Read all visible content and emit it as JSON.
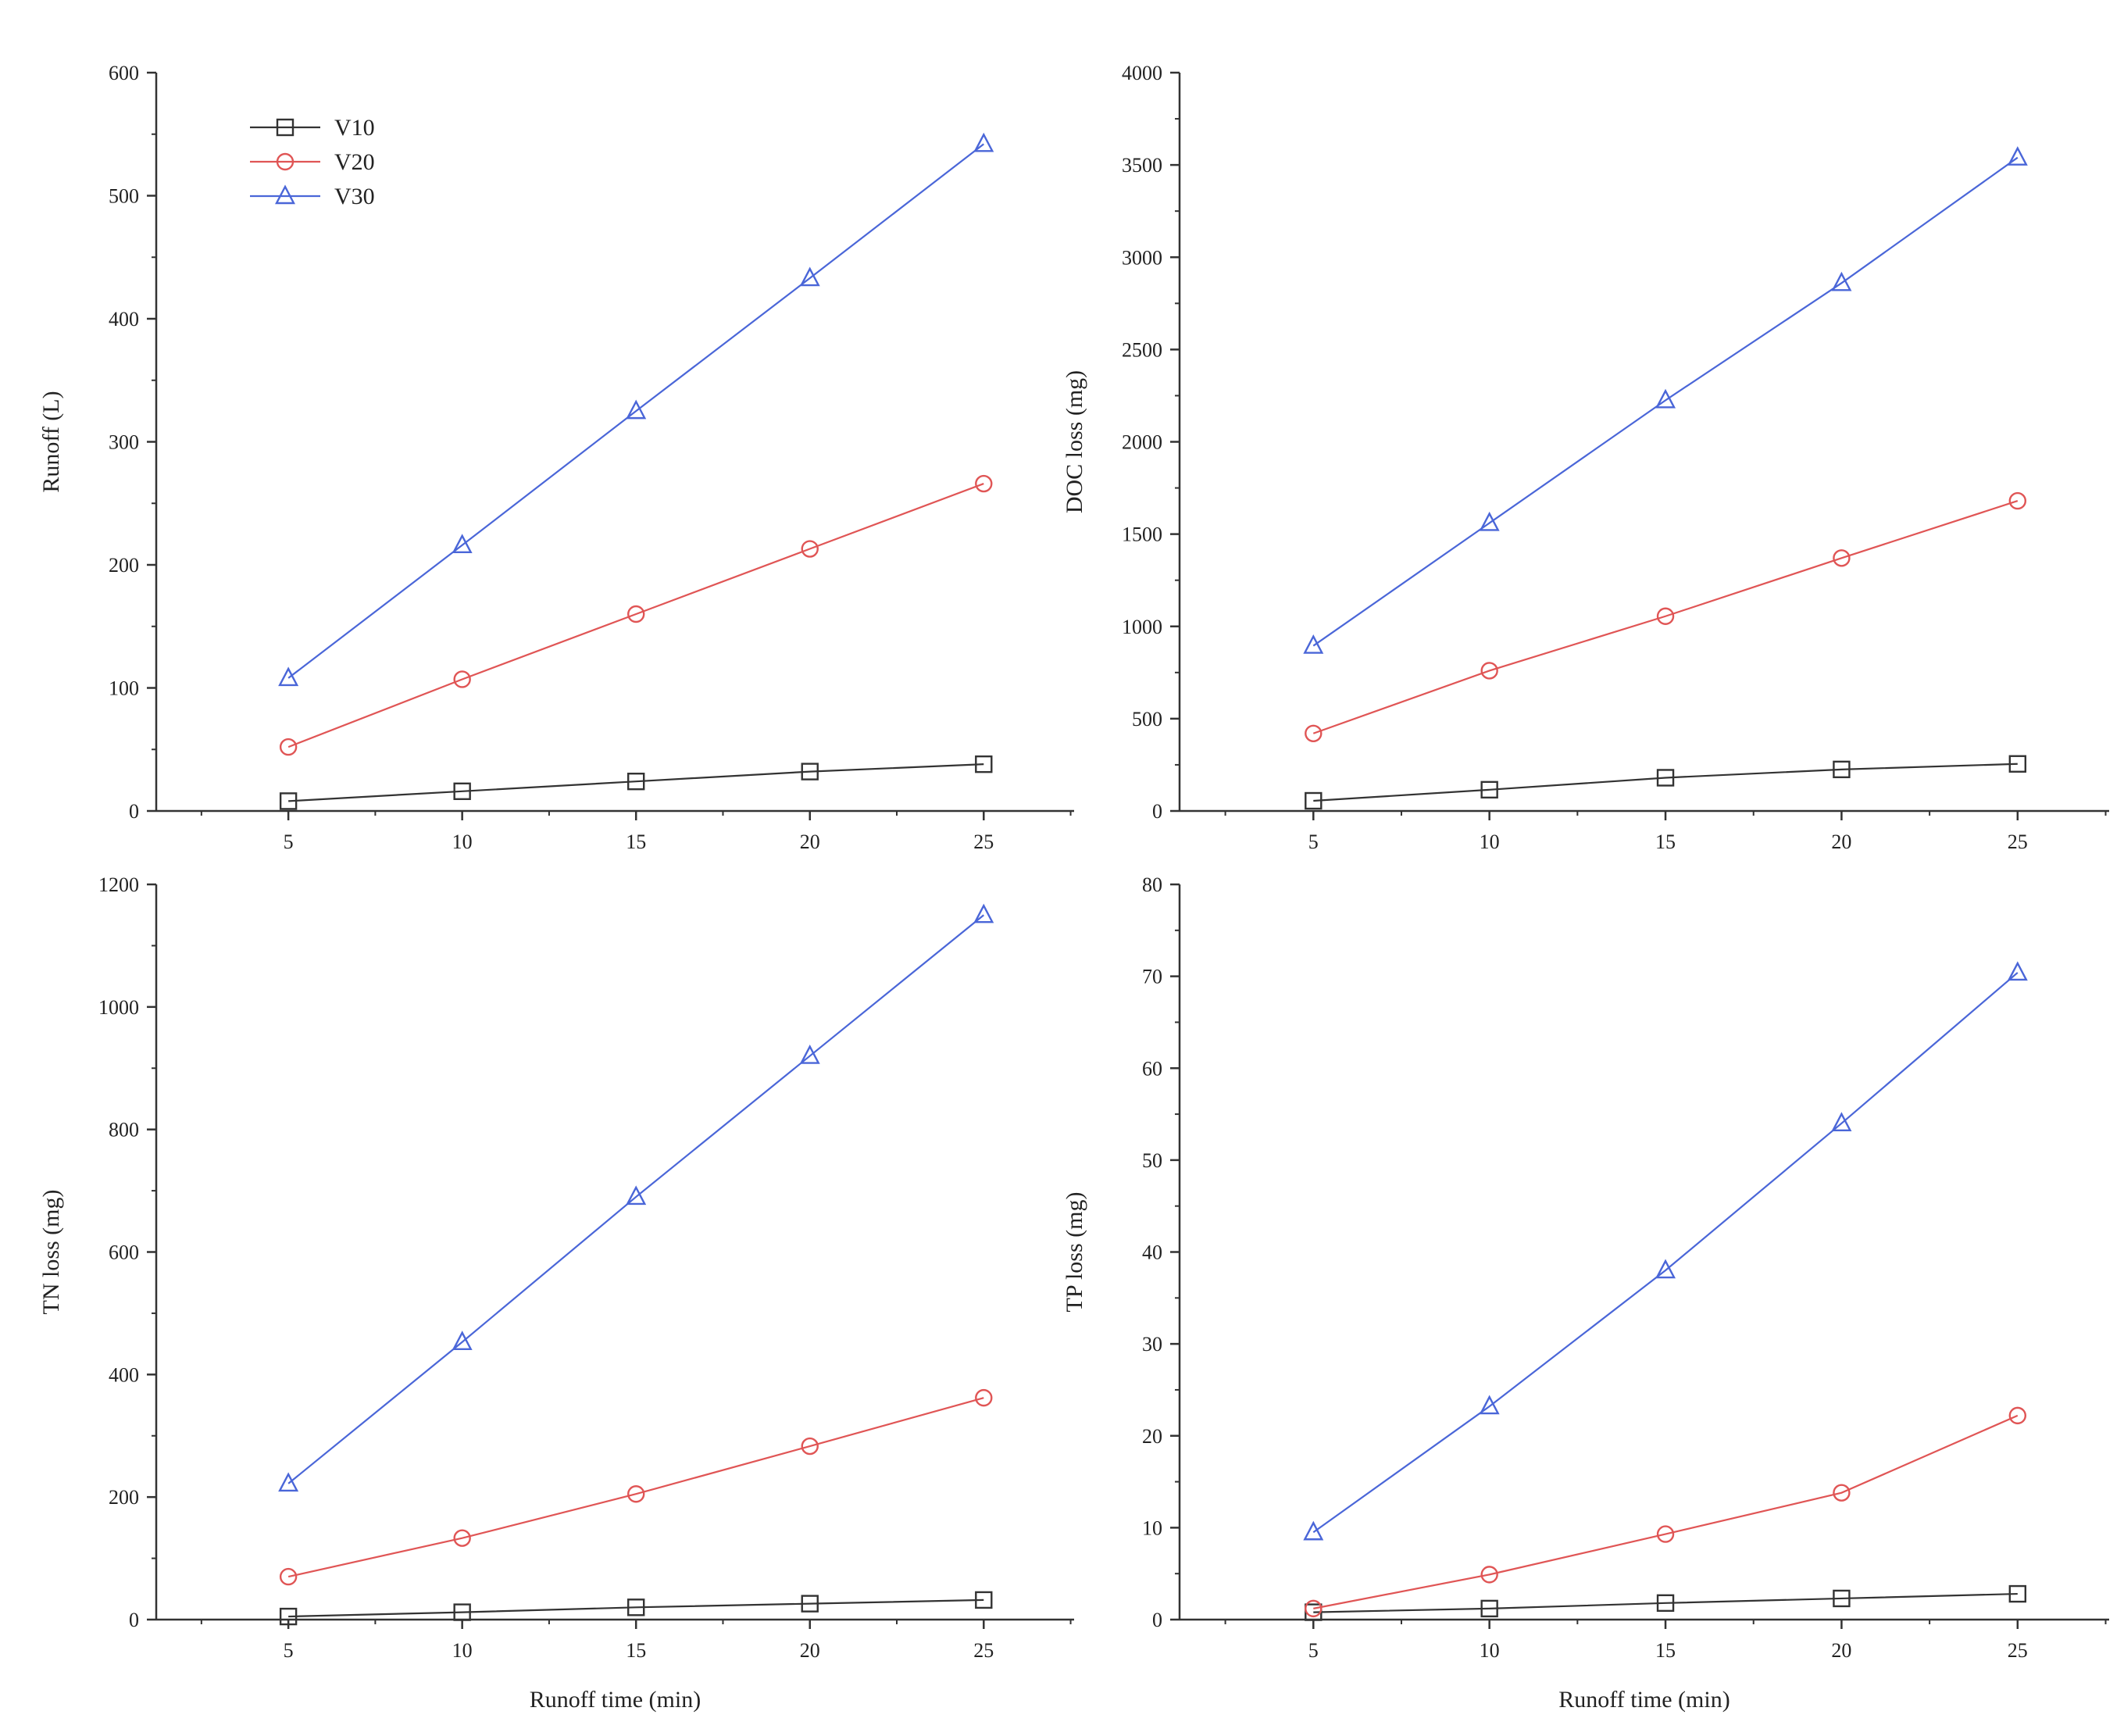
{
  "chart_data": [
    {
      "type": "line",
      "panel": "top-left",
      "title": "",
      "xlabel": "",
      "ylabel": "Runoff (L)",
      "x": [
        5,
        10,
        15,
        20,
        25
      ],
      "xticks": [
        "5",
        "10",
        "15",
        "20",
        "25"
      ],
      "ylim": [
        0,
        600
      ],
      "yticks": [
        "0",
        "100",
        "200",
        "300",
        "400",
        "500",
        "600"
      ],
      "legend": {
        "placement": "top-left",
        "entries": [
          "V10",
          "V20",
          "V30"
        ]
      },
      "series": [
        {
          "name": "V10",
          "marker": "square",
          "values": [
            8,
            16,
            24,
            32,
            38
          ]
        },
        {
          "name": "V20",
          "marker": "circle",
          "values": [
            52,
            107,
            160,
            213,
            266
          ]
        },
        {
          "name": "V30",
          "marker": "triangle",
          "values": [
            108,
            216,
            325,
            433,
            542
          ]
        }
      ]
    },
    {
      "type": "line",
      "panel": "top-right",
      "title": "",
      "xlabel": "",
      "ylabel": "DOC loss (mg)",
      "x": [
        5,
        10,
        15,
        20,
        25
      ],
      "xticks": [
        "5",
        "10",
        "15",
        "20",
        "25"
      ],
      "ylim": [
        0,
        4000
      ],
      "yticks": [
        "0",
        "500",
        "1000",
        "1500",
        "2000",
        "2500",
        "3000",
        "3500",
        "4000"
      ],
      "series": [
        {
          "name": "V10",
          "marker": "square",
          "values": [
            55,
            115,
            180,
            225,
            255
          ]
        },
        {
          "name": "V20",
          "marker": "circle",
          "values": [
            420,
            760,
            1055,
            1370,
            1680
          ]
        },
        {
          "name": "V30",
          "marker": "triangle",
          "values": [
            895,
            1560,
            2225,
            2860,
            3540
          ]
        }
      ]
    },
    {
      "type": "line",
      "panel": "bottom-left",
      "title": "",
      "xlabel": "Runoff time (min)",
      "ylabel": "TN loss (mg)",
      "x": [
        5,
        10,
        15,
        20,
        25
      ],
      "xticks": [
        "5",
        "10",
        "15",
        "20",
        "25"
      ],
      "ylim": [
        0,
        1200
      ],
      "yticks": [
        "0",
        "200",
        "400",
        "600",
        "800",
        "1000",
        "1200"
      ],
      "series": [
        {
          "name": "V10",
          "marker": "square",
          "values": [
            5,
            12,
            20,
            26,
            32
          ]
        },
        {
          "name": "V20",
          "marker": "circle",
          "values": [
            70,
            133,
            205,
            283,
            362
          ]
        },
        {
          "name": "V30",
          "marker": "triangle",
          "values": [
            222,
            453,
            690,
            920,
            1150
          ]
        }
      ]
    },
    {
      "type": "line",
      "panel": "bottom-right",
      "title": "",
      "xlabel": "Runoff time (min)",
      "ylabel": "TP loss (mg)",
      "x": [
        5,
        10,
        15,
        20,
        25
      ],
      "xticks": [
        "5",
        "10",
        "15",
        "20",
        "25"
      ],
      "ylim": [
        0,
        80
      ],
      "yticks": [
        "0",
        "10",
        "20",
        "30",
        "40",
        "50",
        "60",
        "70",
        "80"
      ],
      "series": [
        {
          "name": "V10",
          "marker": "square",
          "values": [
            0.8,
            1.2,
            1.8,
            2.3,
            2.8
          ]
        },
        {
          "name": "V20",
          "marker": "circle",
          "values": [
            1.2,
            4.9,
            9.3,
            13.8,
            22.2
          ]
        },
        {
          "name": "V30",
          "marker": "triangle",
          "values": [
            9.5,
            23.2,
            38,
            54,
            70.4
          ]
        }
      ]
    }
  ],
  "colors": {
    "V10": "#333333",
    "V20": "#e05555",
    "V30": "#4a66d8",
    "axis": "#333333"
  }
}
